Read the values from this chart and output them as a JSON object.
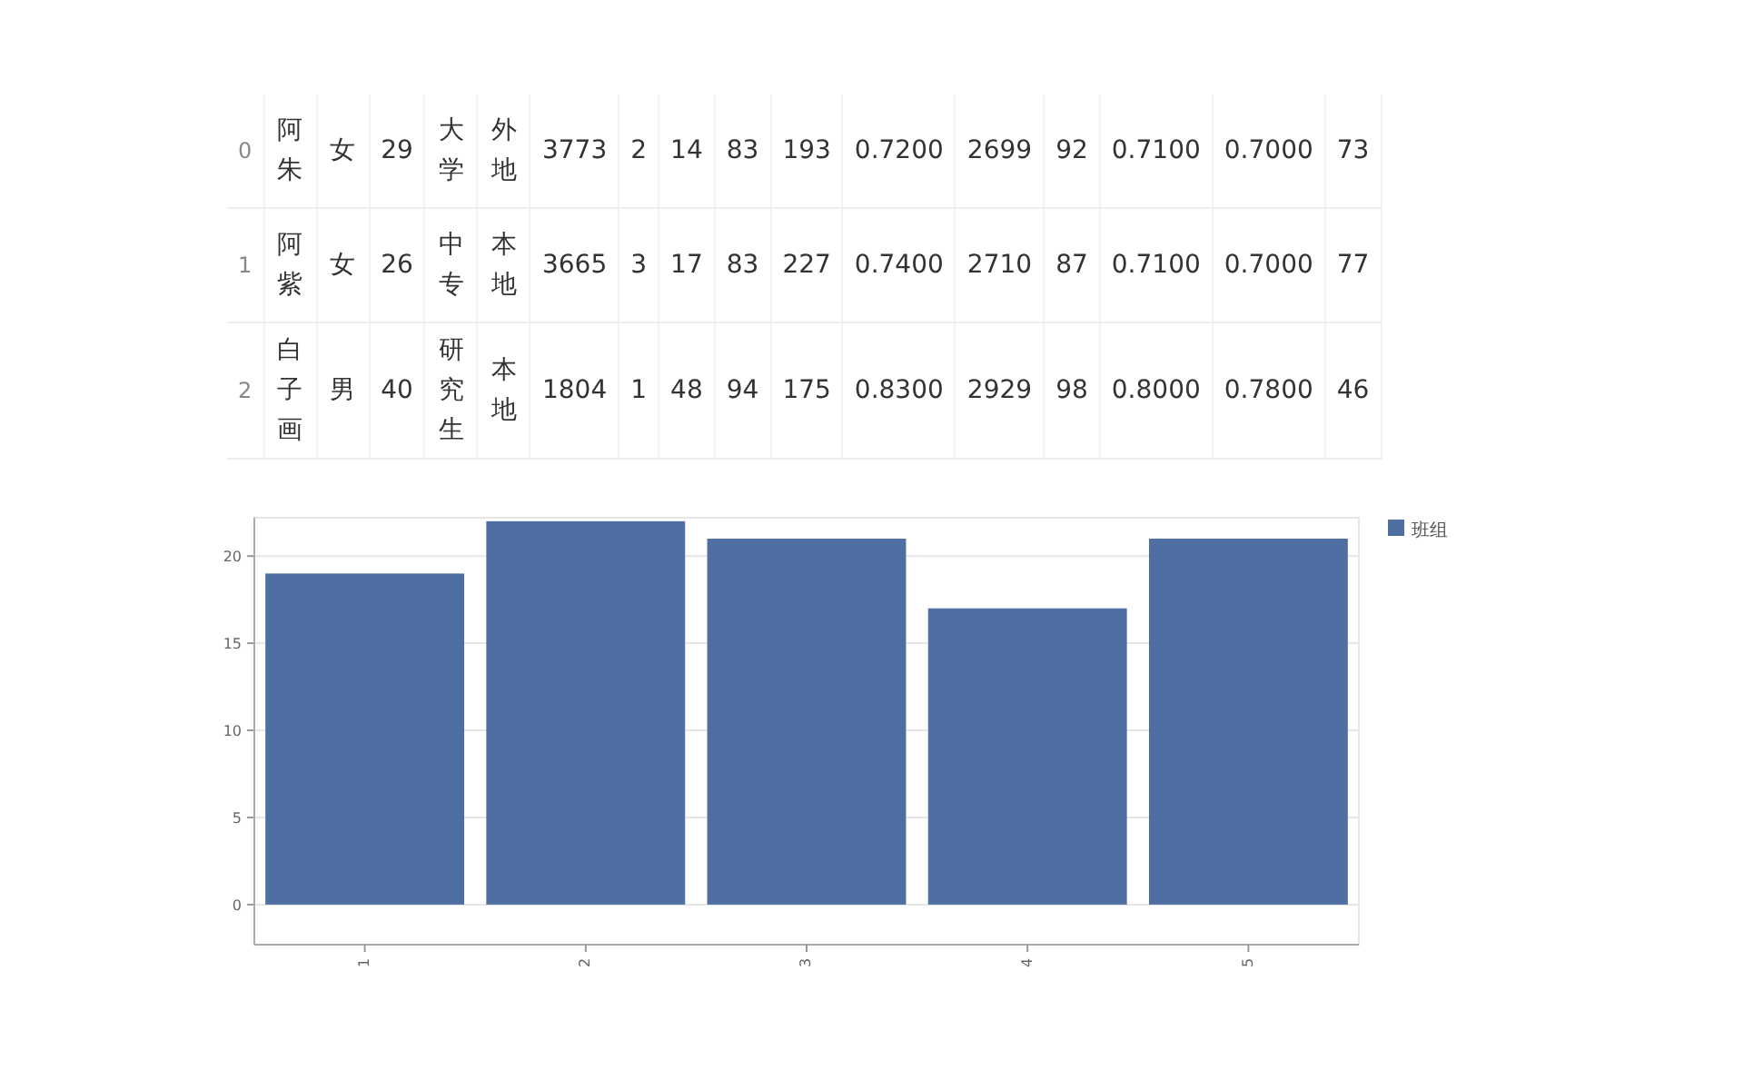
{
  "chart_data": [
    {
      "type": "other",
      "y_categories": [
        "0",
        "1",
        "2"
      ],
      "cell_labels": [
        [
          "阿朱",
          "女",
          "29",
          "大学",
          "外地",
          "3773",
          "2",
          "14",
          "83",
          "193",
          "0.7200",
          "2699",
          "92",
          "0.7100",
          "0.7000",
          "73"
        ],
        [
          "阿紫",
          "女",
          "26",
          "中专",
          "本地",
          "3665",
          "3",
          "17",
          "83",
          "227",
          "0.7400",
          "2710",
          "87",
          "0.7100",
          "0.7000",
          "77"
        ],
        [
          "白子画",
          "男",
          "40",
          "研究生",
          "本地",
          "1804",
          "1",
          "48",
          "94",
          "175",
          "0.8300",
          "2929",
          "98",
          "0.8000",
          "0.7800",
          "46"
        ]
      ]
    },
    {
      "type": "bar",
      "categories": [
        "1",
        "2",
        "3",
        "4",
        "5"
      ],
      "series": [
        {
          "name": "班组",
          "color": "#4f6fa3",
          "values": [
            19,
            22,
            21,
            17,
            21
          ]
        }
      ],
      "ylim": [
        -2.3,
        22.2
      ],
      "yticks": [
        0,
        5,
        10,
        15,
        20
      ],
      "grid": "y",
      "legend": "top right"
    }
  ]
}
